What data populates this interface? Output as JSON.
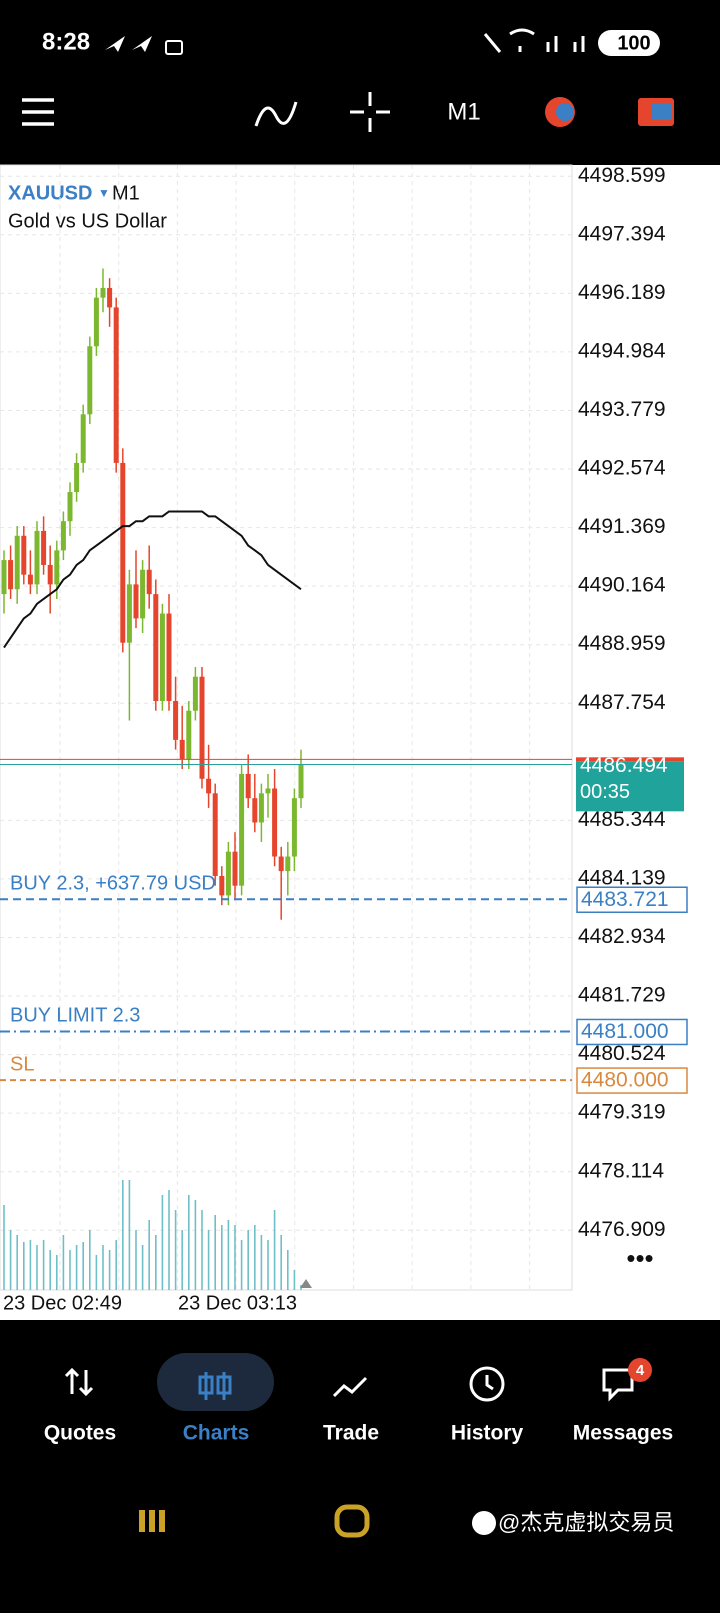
{
  "status_bar": {
    "time": "8:28",
    "battery": "100"
  },
  "toolbar": {
    "timeframe": "M1"
  },
  "chart": {
    "type": "candlestick",
    "symbol": "XAUUSD",
    "timeframe": "M1",
    "name": "Gold vs US Dollar",
    "ylim": [
      4475.68,
      4498.83
    ],
    "yticks": [
      4498.599,
      4497.394,
      4496.189,
      4494.984,
      4493.779,
      4492.574,
      4491.369,
      4490.164,
      4488.959,
      4487.754,
      4485.344,
      4484.139,
      4482.934,
      4481.729,
      4480.524,
      4479.319,
      4478.114,
      4476.909
    ],
    "open": [
      4490.0,
      4490.7,
      4490.1,
      4491.2,
      4490.4,
      4490.2,
      4491.3,
      4490.6,
      4490.2,
      4490.9,
      4491.5,
      4492.1,
      4492.7,
      4493.7,
      4495.1,
      4496.1,
      4496.3,
      4495.9,
      4492.7,
      4489.0,
      4490.2,
      4489.5,
      4490.5,
      4490.0,
      4487.8,
      4489.6,
      4487.8,
      4487.0,
      4486.6,
      4487.6,
      4488.3,
      4486.2,
      4485.9,
      4484.2,
      4483.8,
      4484.7,
      4484.0,
      4486.3,
      4485.8,
      4485.3,
      4485.9,
      4486.0,
      4484.6,
      4484.3,
      4484.6,
      4485.8
    ],
    "high": [
      4490.9,
      4491.0,
      4491.4,
      4491.4,
      4490.9,
      4491.5,
      4491.6,
      4491.0,
      4491.1,
      4491.7,
      4492.3,
      4492.9,
      4493.9,
      4495.3,
      4496.3,
      4496.7,
      4496.5,
      4496.1,
      4493.0,
      4490.5,
      4490.9,
      4490.7,
      4491.0,
      4490.3,
      4489.8,
      4490.0,
      4488.3,
      4487.7,
      4487.8,
      4488.5,
      4488.5,
      4486.9,
      4486.1,
      4484.4,
      4484.9,
      4485.1,
      4486.5,
      4486.7,
      4486.3,
      4486.1,
      4486.3,
      4486.4,
      4484.8,
      4484.9,
      4486.0,
      4486.8
    ],
    "low": [
      4489.6,
      4489.9,
      4489.8,
      4490.2,
      4490.0,
      4490.0,
      4490.4,
      4489.6,
      4489.9,
      4490.7,
      4491.2,
      4491.9,
      4492.5,
      4493.5,
      4494.9,
      4495.8,
      4495.5,
      4492.5,
      4488.8,
      4487.4,
      4489.3,
      4489.2,
      4489.7,
      4487.6,
      4487.6,
      4487.6,
      4486.8,
      4486.4,
      4486.4,
      4487.4,
      4486.0,
      4485.6,
      4484.0,
      4483.6,
      4483.6,
      4483.7,
      4483.8,
      4485.6,
      4485.1,
      4484.9,
      4485.4,
      4484.4,
      4483.3,
      4483.8,
      4484.3,
      4485.6
    ],
    "close": [
      4490.7,
      4490.1,
      4491.2,
      4490.4,
      4490.2,
      4491.3,
      4490.6,
      4490.2,
      4490.9,
      4491.5,
      4492.1,
      4492.7,
      4493.7,
      4495.1,
      4496.1,
      4496.3,
      4495.9,
      4492.7,
      4489.0,
      4490.2,
      4489.5,
      4490.5,
      4490.0,
      4487.8,
      4489.6,
      4487.8,
      4487.0,
      4486.6,
      4487.6,
      4488.3,
      4486.2,
      4485.9,
      4484.2,
      4483.8,
      4484.7,
      4484.0,
      4486.3,
      4485.8,
      4485.3,
      4485.9,
      4486.0,
      4484.6,
      4484.3,
      4484.6,
      4485.8,
      4486.5
    ],
    "ma": [
      4488.9,
      4489.1,
      4489.3,
      4489.5,
      4489.6,
      4489.8,
      4489.9,
      4490.0,
      4490.1,
      4490.3,
      4490.4,
      4490.6,
      4490.7,
      4490.9,
      4491.0,
      4491.1,
      4491.2,
      4491.3,
      4491.4,
      4491.4,
      4491.5,
      4491.5,
      4491.6,
      4491.6,
      4491.6,
      4491.7,
      4491.7,
      4491.7,
      4491.7,
      4491.7,
      4491.7,
      4491.6,
      4491.6,
      4491.5,
      4491.4,
      4491.3,
      4491.2,
      4491.0,
      4490.9,
      4490.8,
      4490.6,
      4490.5,
      4490.4,
      4490.3,
      4490.2,
      4490.1
    ],
    "volumes": [
      85,
      60,
      55,
      48,
      50,
      45,
      50,
      40,
      35,
      55,
      40,
      45,
      48,
      60,
      35,
      45,
      40,
      50,
      110,
      110,
      60,
      45,
      70,
      55,
      95,
      100,
      80,
      60,
      95,
      90,
      80,
      60,
      75,
      65,
      70,
      65,
      50,
      60,
      65,
      55,
      50,
      80,
      55,
      40,
      20,
      5
    ],
    "up_color": "#7cb82f",
    "down_color": "#e5452c",
    "ma_color": "#111111",
    "volume_color": "#6fbfc8",
    "x_labels": [
      "23 Dec 02:49",
      "23 Dec 03:13"
    ],
    "bid": 4486.494,
    "ask": 4486.6,
    "countdown": "00:35",
    "orders": [
      {
        "label": "BUY 2.3,  +637.79 USD",
        "price": 4483.721,
        "color": "#3b7fc4",
        "dash": "8 5"
      },
      {
        "label": "BUY LIMIT 2.3",
        "price": {
          "value": 4481,
          "label": "4481.000"
        },
        "color": "#3b7fc4",
        "dash": "10 4 2 4"
      },
      {
        "label": "SL",
        "price": {
          "value": 4480,
          "label": "4480.000"
        },
        "color": "#d9893e",
        "dash": "6 4"
      }
    ]
  },
  "nav": {
    "items": [
      "Quotes",
      "Charts",
      "Trade",
      "History",
      "Messages"
    ],
    "active": 1,
    "badge": "4"
  },
  "watermark": "@杰克虚拟交易员"
}
